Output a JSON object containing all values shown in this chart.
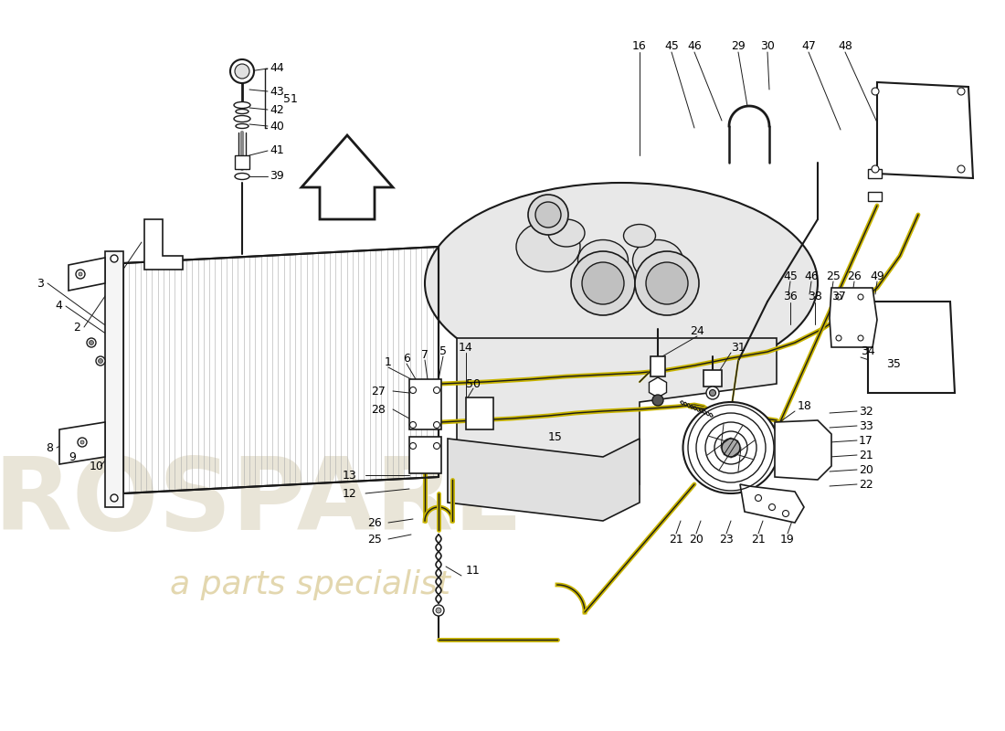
{
  "bg_color": "#ffffff",
  "line_color": "#1a1a1a",
  "yellow_color": "#c8b400",
  "gray_engine": "#e8e8e8",
  "gray_light": "#f0f0f0",
  "watermark1": "#d8d0b8",
  "watermark2": "#c8b060"
}
